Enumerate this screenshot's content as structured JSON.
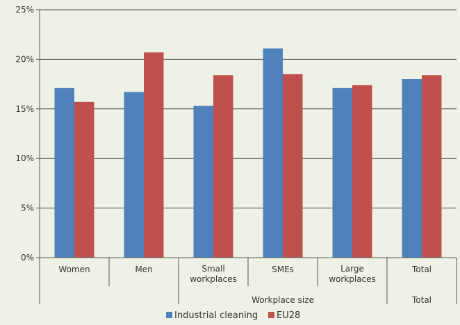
{
  "chart_data": {
    "type": "bar",
    "categories": [
      "Women",
      "Men",
      "Small\nworkplaces",
      "SMEs",
      "Large\nworkplaces",
      "Total"
    ],
    "groups": [
      {
        "label": "",
        "span": [
          0,
          1
        ]
      },
      {
        "label": "Workplace size",
        "span": [
          2,
          4
        ]
      },
      {
        "label": "Total",
        "span": [
          5,
          5
        ]
      }
    ],
    "series": [
      {
        "name": "Industrial cleaning",
        "color": "#4f81bd",
        "values": [
          17.1,
          16.7,
          15.3,
          21.1,
          17.1,
          18.0
        ]
      },
      {
        "name": "EU28",
        "color": "#c0504d",
        "values": [
          15.7,
          20.7,
          18.4,
          18.5,
          17.4,
          18.4
        ]
      }
    ],
    "ylim": [
      0,
      25
    ],
    "yticks": [
      "0%",
      "5%",
      "10%",
      "15%",
      "20%",
      "25%"
    ],
    "ytick_values": [
      0,
      5,
      10,
      15,
      20,
      25
    ],
    "grid": true,
    "legend_position": "bottom"
  }
}
